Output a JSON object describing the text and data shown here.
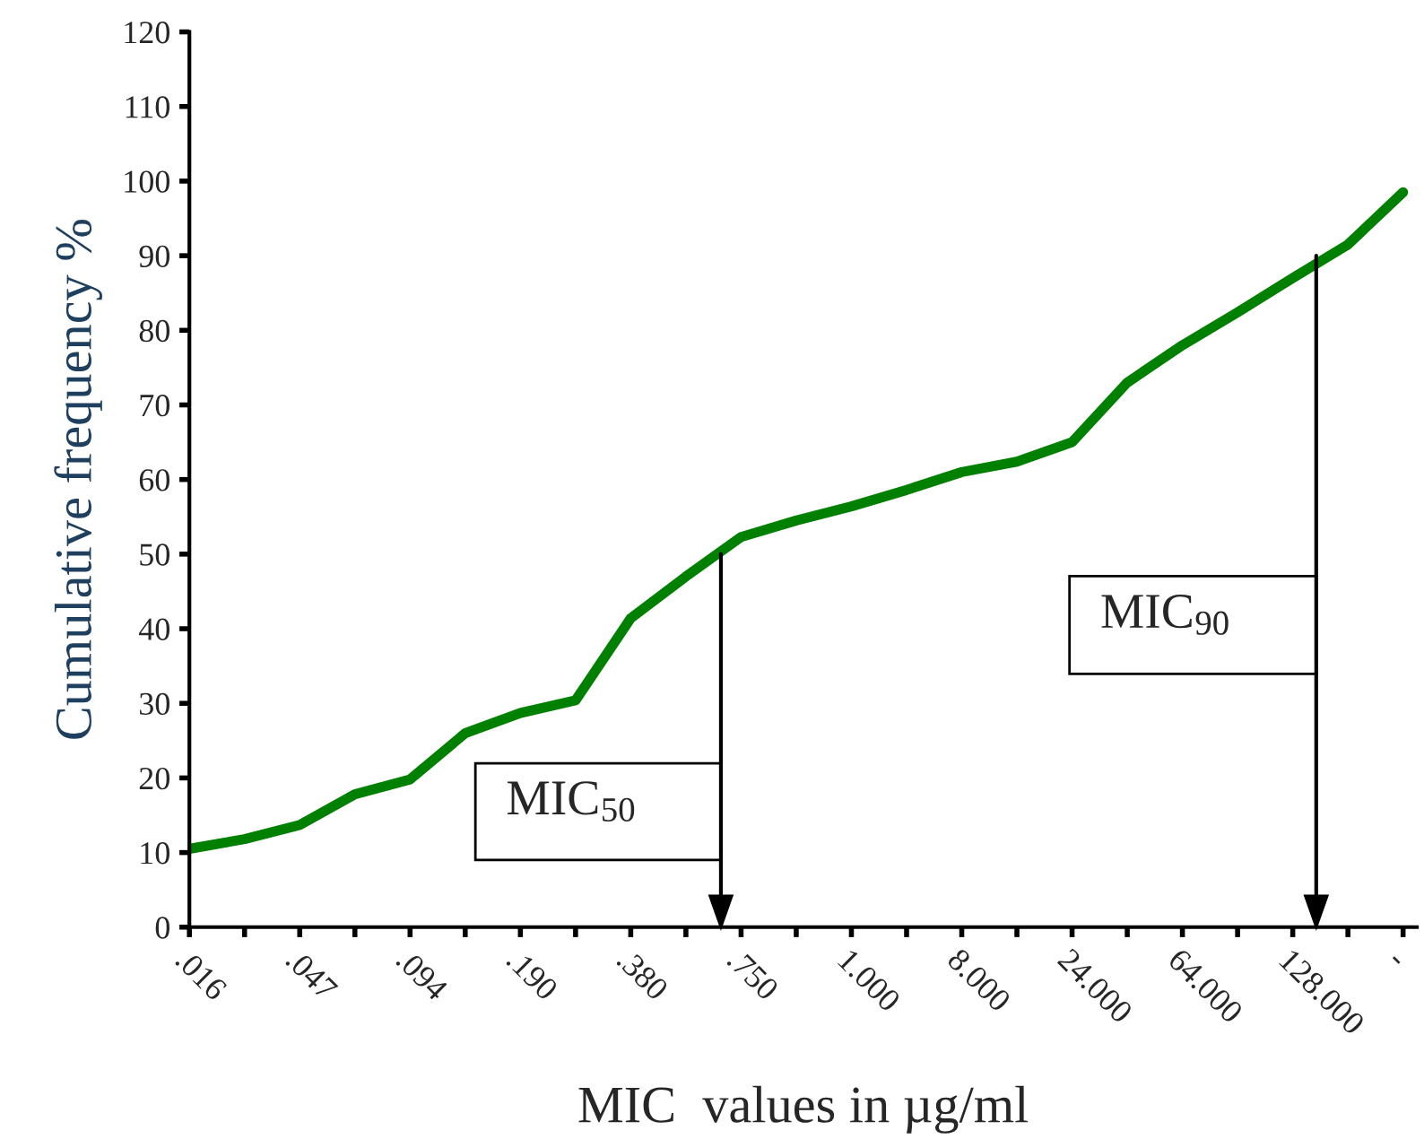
{
  "chart_data": {
    "type": "line",
    "xlabel": "MIC  values in µg/ml",
    "ylabel": "Cumulative frequency %",
    "categories": [
      ".016",
      null,
      ".047",
      null,
      ".094",
      null,
      ".190",
      null,
      ".380",
      null,
      ".750",
      null,
      "1.000",
      null,
      "8.000",
      null,
      "24.000",
      null,
      "64.000",
      null,
      "128.000",
      null,
      "-"
    ],
    "series": [
      {
        "color": "#008000",
        "values": [
          10.5,
          11.8,
          13.7,
          17.8,
          19.8,
          26,
          28.7,
          30.4,
          41.4,
          47,
          52.3,
          54.5,
          56.4,
          58.6,
          61,
          62.4,
          65,
          73,
          78,
          82.4,
          87,
          91.5,
          98.5
        ]
      }
    ],
    "ylim": [
      0,
      120
    ],
    "yticks": [
      0,
      10,
      20,
      30,
      40,
      50,
      60,
      70,
      80,
      90,
      100,
      110,
      120
    ],
    "marker": "none",
    "line_style": "solid",
    "annotations": [
      "MIC$_{50}$",
      "MIC$_{90}$"
    ]
  }
}
